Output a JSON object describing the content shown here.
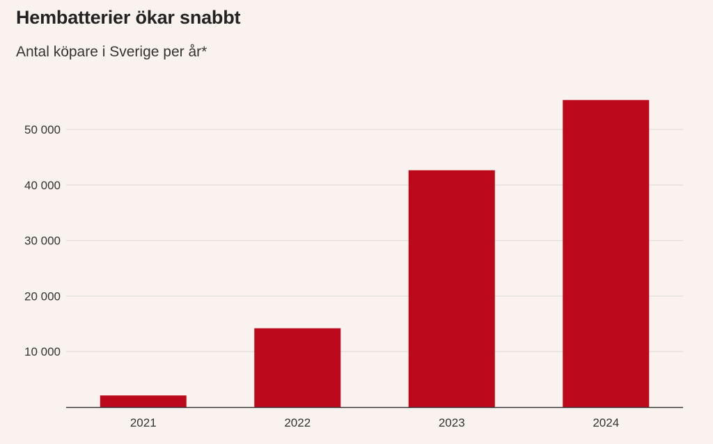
{
  "chart_data": {
    "type": "bar",
    "title": "Hembatterier ökar snabbt",
    "subtitle": "Antal köpare i Sverige per år*",
    "xlabel": "",
    "ylabel": "",
    "categories": [
      "2021",
      "2022",
      "2023",
      "2024"
    ],
    "values": [
      2100,
      14200,
      42650,
      55300
    ],
    "ylim": [
      0,
      55300
    ],
    "yticks": [
      10000,
      20000,
      30000,
      40000,
      50000
    ],
    "ytick_labels": [
      "10 000",
      "20 000",
      "30 000",
      "40 000",
      "50 000"
    ],
    "grid": true,
    "legend": "none",
    "colors": {
      "bar": "#bc091c",
      "grid": "#e2e0de",
      "axis": "#333333"
    }
  }
}
